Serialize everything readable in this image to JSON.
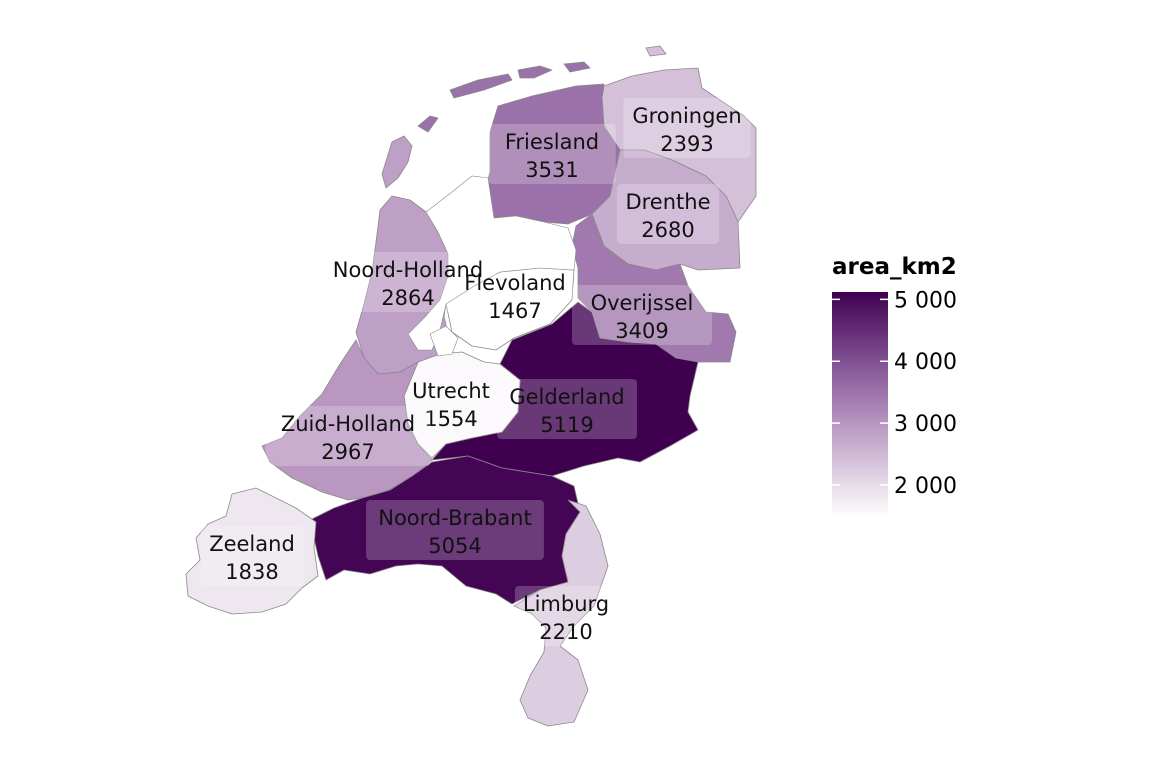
{
  "legend": {
    "title": "area_km2",
    "ticks": [
      {
        "value": 2000,
        "label": "2 000"
      },
      {
        "value": 3000,
        "label": "3 000"
      },
      {
        "value": 4000,
        "label": "4 000"
      },
      {
        "value": 5000,
        "label": "5 000"
      }
    ],
    "range": [
      1467,
      5119
    ],
    "color_low": "#ffffff",
    "color_high": "#3f0050"
  },
  "chart_data": {
    "type": "choropleth",
    "value_field": "area_km2",
    "regions": [
      {
        "id": "groningen",
        "name": "Groningen",
        "value": 2393
      },
      {
        "id": "friesland",
        "name": "Friesland",
        "value": 3531
      },
      {
        "id": "drenthe",
        "name": "Drenthe",
        "value": 2680
      },
      {
        "id": "noord-holland",
        "name": "Noord-Holland",
        "value": 2864
      },
      {
        "id": "flevoland",
        "name": "Flevoland",
        "value": 1467
      },
      {
        "id": "overijssel",
        "name": "Overijssel",
        "value": 3409
      },
      {
        "id": "utrecht",
        "name": "Utrecht",
        "value": 1554
      },
      {
        "id": "gelderland",
        "name": "Gelderland",
        "value": 5119
      },
      {
        "id": "zuid-holland",
        "name": "Zuid-Holland",
        "value": 2967
      },
      {
        "id": "noord-brabant",
        "name": "Noord-Brabant",
        "value": 5054
      },
      {
        "id": "zeeland",
        "name": "Zeeland",
        "value": 1838
      },
      {
        "id": "limburg",
        "name": "Limburg",
        "value": 2210
      }
    ]
  }
}
